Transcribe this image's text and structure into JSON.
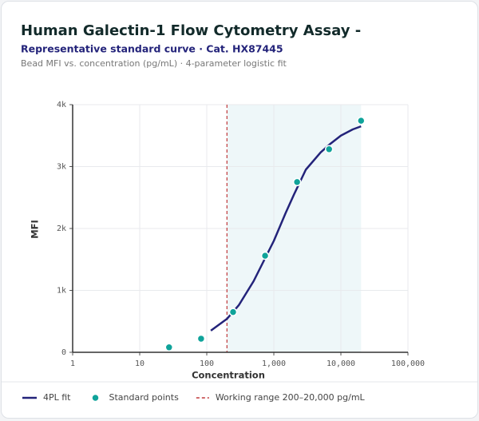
{
  "chart_data": {
    "type": "line",
    "title": "Human Galectin-1 Flow Cytometry Assay -",
    "subtitle": "Representative standard curve · Cat. HX87445",
    "description": "Bead MFI vs. concentration (pg/mL) · 4-parameter logistic fit",
    "x_label": "Concentration",
    "y_label": "MFI",
    "x_log": true,
    "grid": true,
    "xlim": [
      1,
      100000
    ],
    "xticks": [
      1,
      10,
      100,
      {
        "value": 1000,
        "label": "1,000"
      },
      {
        "value": 10000,
        "label": "10,000"
      },
      {
        "value": 100000,
        "label": "100,000"
      }
    ],
    "ylim": [
      0,
      4000
    ],
    "yticks": [
      0,
      {
        "value": 1000,
        "label": "1k"
      },
      {
        "value": 2000,
        "label": "2k"
      },
      {
        "value": 3000,
        "label": "3k"
      },
      {
        "value": 4000,
        "label": "4k"
      }
    ],
    "series": [
      {
        "name": "4PL fit",
        "kind": "line",
        "color": "#23237a",
        "x": [
          115,
          200,
          300,
          500,
          1000,
          1500,
          2000,
          3000,
          5000,
          7000,
          10000,
          15000,
          20000
        ],
        "values": [
          350,
          540,
          760,
          1150,
          1800,
          2250,
          2550,
          2950,
          3230,
          3370,
          3500,
          3600,
          3650
        ]
      },
      {
        "name": "Standard points",
        "kind": "scatter",
        "color": "#0fa39a",
        "x": [
          27.4,
          82.3,
          247,
          741,
          2222,
          6667,
          20000
        ],
        "values": [
          80,
          220,
          650,
          1560,
          2750,
          3280,
          3740
        ]
      }
    ],
    "working_range": {
      "name": "Working range 200–20,000 pg/mL",
      "color": "#c0393b",
      "fill": "#eef7f9",
      "x": [
        200,
        20000
      ]
    }
  }
}
